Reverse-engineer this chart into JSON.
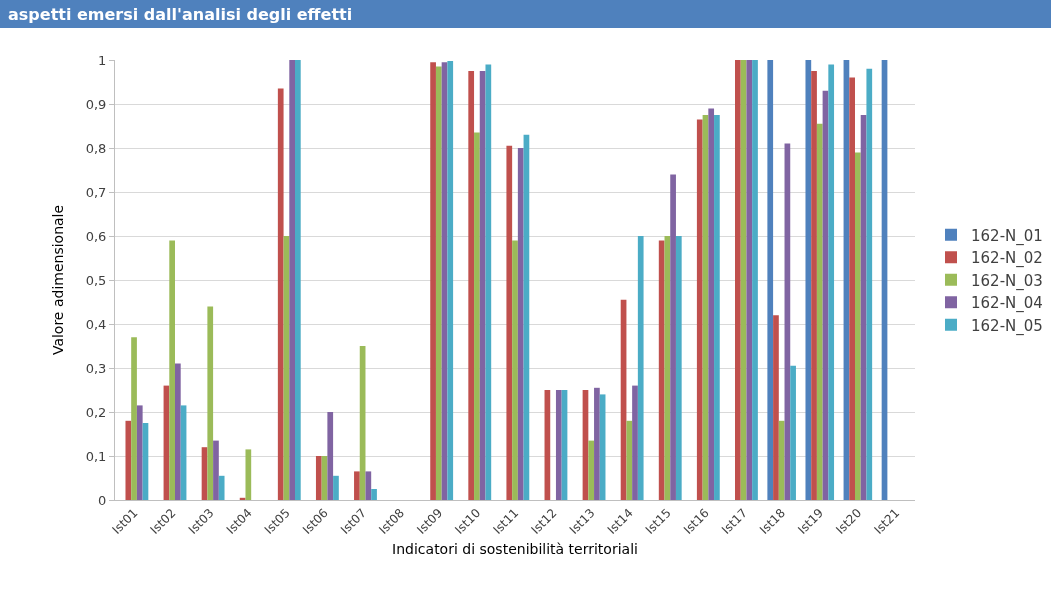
{
  "chart_data": {
    "type": "bar",
    "title": "aspetti emersi dall'analisi degli effetti",
    "xlabel": "Indicatori di sostenibilità territoriali",
    "ylabel": "Valore adimensionale",
    "categories": [
      "Ist01",
      "Ist02",
      "Ist03",
      "Ist04",
      "Ist05",
      "Ist06",
      "Ist07",
      "Ist08",
      "Ist09",
      "Ist10",
      "Ist11",
      "Ist12",
      "Ist13",
      "Ist14",
      "Ist15",
      "Ist16",
      "Ist17",
      "Ist18",
      "Ist19",
      "Ist20",
      "Ist21"
    ],
    "series": [
      {
        "name": "162-N_01",
        "color": "#4f81bd",
        "values": [
          0,
          0,
          0,
          0,
          0,
          0,
          0,
          0,
          0,
          0,
          0,
          0,
          0,
          0,
          0,
          0,
          0,
          1,
          1,
          1,
          1
        ]
      },
      {
        "name": "162-N_02",
        "color": "#c0504d",
        "values": [
          0.18,
          0.26,
          0.12,
          0.005,
          0.935,
          0.1,
          0.065,
          0,
          0.995,
          0.975,
          0.805,
          0.25,
          0.25,
          0.455,
          0.59,
          0.865,
          1,
          0.42,
          0.975,
          0.96,
          0
        ]
      },
      {
        "name": "162-N_03",
        "color": "#9bbb59",
        "values": [
          0.37,
          0.59,
          0.44,
          0.115,
          0.6,
          0.1,
          0.35,
          0,
          0.985,
          0.835,
          0.59,
          0,
          0.135,
          0.18,
          0.6,
          0.875,
          1,
          0.18,
          0.855,
          0.79,
          0
        ]
      },
      {
        "name": "162-N_04",
        "color": "#8064a2",
        "values": [
          0.215,
          0.31,
          0.135,
          0,
          1,
          0.2,
          0.065,
          0,
          0.995,
          0.975,
          0.8,
          0.25,
          0.255,
          0.26,
          0.74,
          0.89,
          1,
          0.81,
          0.93,
          0.875,
          0
        ]
      },
      {
        "name": "162-N_05",
        "color": "#4bacc6",
        "values": [
          0.175,
          0.215,
          0.055,
          0,
          1,
          0.055,
          0.025,
          0,
          0.998,
          0.99,
          0.83,
          0.25,
          0.24,
          0.6,
          0.6,
          0.875,
          1,
          0.305,
          0.99,
          0.98,
          0
        ]
      }
    ],
    "ylim": [
      0,
      1
    ],
    "yticks": [
      0,
      {
        "value": 0.1,
        "label": "0,1"
      },
      {
        "value": 0.2,
        "label": "0,2"
      },
      {
        "value": 0.3,
        "label": "0,3"
      },
      {
        "value": 0.4,
        "label": "0,4"
      },
      {
        "value": 0.5,
        "label": "0,5"
      },
      {
        "value": 0.6,
        "label": "0,6"
      },
      {
        "value": 0.7,
        "label": "0,7"
      },
      {
        "value": 0.8,
        "label": "0,8"
      },
      {
        "value": 0.9,
        "label": "0,9"
      },
      1
    ],
    "grid": "y",
    "legend": "right"
  }
}
